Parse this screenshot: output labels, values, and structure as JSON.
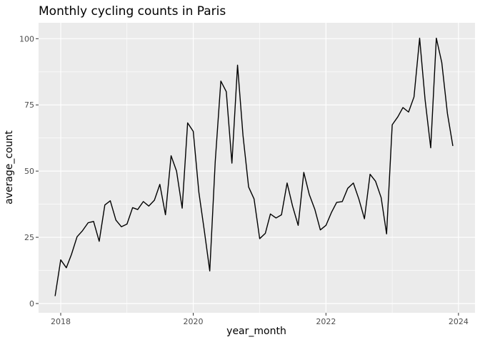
{
  "chart_data": {
    "type": "line",
    "title": "Monthly cycling counts in Paris",
    "xlabel": "year_month",
    "ylabel": "average_count",
    "xlim": [
      "2017-09-01",
      "2024-04-01"
    ],
    "ylim": [
      -3.5,
      106
    ],
    "x_ticks": [
      "2018-01-01",
      "2020-01-01",
      "2022-01-01",
      "2024-01-01"
    ],
    "x_tick_labels": [
      "2018",
      "2020",
      "2022",
      "2024"
    ],
    "y_ticks": [
      0,
      25,
      50,
      75,
      100
    ],
    "y_tick_labels": [
      "0",
      "25",
      "50",
      "75",
      "100"
    ],
    "x_minor_ticks": [
      "2019-01-01",
      "2021-01-01",
      "2023-01-01"
    ],
    "y_minor_ticks": [
      12.5,
      37.5,
      62.5,
      87.5
    ],
    "grid": true,
    "series": [
      {
        "line_color": "#000000",
        "x": [
          "2017-12-01",
          "2018-01-01",
          "2018-02-01",
          "2018-03-01",
          "2018-04-01",
          "2018-05-01",
          "2018-06-01",
          "2018-07-01",
          "2018-08-01",
          "2018-09-01",
          "2018-10-01",
          "2018-11-01",
          "2018-12-01",
          "2019-01-01",
          "2019-02-01",
          "2019-03-01",
          "2019-04-01",
          "2019-05-01",
          "2019-06-01",
          "2019-07-01",
          "2019-08-01",
          "2019-09-01",
          "2019-10-01",
          "2019-11-01",
          "2019-12-01",
          "2020-01-01",
          "2020-02-01",
          "2020-03-01",
          "2020-04-01",
          "2020-05-01",
          "2020-06-01",
          "2020-07-01",
          "2020-08-01",
          "2020-09-01",
          "2020-10-01",
          "2020-11-01",
          "2020-12-01",
          "2021-01-01",
          "2021-02-01",
          "2021-03-01",
          "2021-04-01",
          "2021-05-01",
          "2021-06-01",
          "2021-07-01",
          "2021-08-01",
          "2021-09-01",
          "2021-10-01",
          "2021-11-01",
          "2021-12-01",
          "2022-01-01",
          "2022-02-01",
          "2022-03-01",
          "2022-04-01",
          "2022-05-01",
          "2022-06-01",
          "2022-07-01",
          "2022-08-01",
          "2022-09-01",
          "2022-10-01",
          "2022-11-01",
          "2022-12-01",
          "2023-01-01",
          "2023-02-01",
          "2023-03-01",
          "2023-04-01",
          "2023-05-01",
          "2023-06-01",
          "2023-07-01",
          "2023-08-01",
          "2023-09-01",
          "2023-10-01",
          "2023-11-01",
          "2023-12-01"
        ],
        "y": [
          2.8,
          16.5,
          13.5,
          18.5,
          25.2,
          27.5,
          30.5,
          31,
          23.5,
          37.2,
          38.8,
          31.5,
          29,
          30,
          36.2,
          35.5,
          38.5,
          36.8,
          39,
          45,
          33.5,
          55.8,
          50,
          36,
          68.2,
          65,
          42,
          28,
          12.3,
          53.5,
          84,
          80,
          53,
          90,
          63.5,
          44,
          39.5,
          24.5,
          26.5,
          33.8,
          32.3,
          33.5,
          45.5,
          36.8,
          29.5,
          49.5,
          41.2,
          35.5,
          27.8,
          29.5,
          34.5,
          38.2,
          38.5,
          43.5,
          45.5,
          39.5,
          32,
          48.8,
          46.2,
          40,
          26.3,
          67.5,
          70.5,
          74,
          72.3,
          78,
          100.2,
          77,
          58.8,
          100.2,
          91,
          71.8,
          59.5
        ]
      }
    ]
  }
}
